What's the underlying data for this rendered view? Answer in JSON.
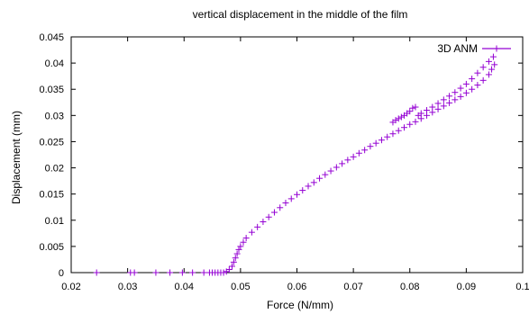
{
  "chart_data": {
    "type": "scatter",
    "title": "vertical displacement in the middle of the film",
    "xlabel": "Force (N/mm)",
    "ylabel": "Displacement (mm)",
    "xlim": [
      0.02,
      0.1
    ],
    "ylim": [
      0,
      0.045
    ],
    "x_ticks": [
      0.02,
      0.03,
      0.04,
      0.05,
      0.06,
      0.07,
      0.08,
      0.09,
      0.1
    ],
    "x_tick_labels": [
      "0.02",
      "0.03",
      "0.04",
      "0.05",
      "0.06",
      "0.07",
      "0.08",
      "0.09",
      "0.1"
    ],
    "y_ticks": [
      0,
      0.005,
      0.01,
      0.015,
      0.02,
      0.025,
      0.03,
      0.035,
      0.04,
      0.045
    ],
    "y_tick_labels": [
      "0",
      "0.005",
      "0.01",
      "0.015",
      "0.02",
      "0.025",
      "0.03",
      "0.035",
      "0.04",
      "0.045"
    ],
    "grid": false,
    "legend_position": "top-right",
    "series": [
      {
        "name": "3D ANM",
        "color": "#9400d3",
        "marker": "plus",
        "x": [
          0.0245,
          0.0305,
          0.0312,
          0.035,
          0.0375,
          0.0397,
          0.0415,
          0.0435,
          0.0445,
          0.045,
          0.0455,
          0.046,
          0.0465,
          0.047,
          0.0475,
          0.048,
          0.0485,
          0.0488,
          0.0491,
          0.0494,
          0.0497,
          0.05,
          0.0505,
          0.051,
          0.052,
          0.053,
          0.054,
          0.055,
          0.056,
          0.057,
          0.058,
          0.059,
          0.06,
          0.061,
          0.062,
          0.063,
          0.064,
          0.065,
          0.066,
          0.067,
          0.068,
          0.069,
          0.07,
          0.071,
          0.072,
          0.073,
          0.074,
          0.075,
          0.076,
          0.077,
          0.078,
          0.079,
          0.08,
          0.081,
          0.082,
          0.083,
          0.084,
          0.085,
          0.086,
          0.087,
          0.088,
          0.089,
          0.09,
          0.091,
          0.092,
          0.093,
          0.094,
          0.0945,
          0.095,
          0.0948,
          0.094,
          0.093,
          0.092,
          0.091,
          0.09,
          0.089,
          0.088,
          0.087,
          0.086,
          0.085,
          0.084,
          0.083,
          0.082,
          0.0815,
          0.081,
          0.0805,
          0.08,
          0.0795,
          0.079,
          0.0785,
          0.078,
          0.0775,
          0.077
        ],
        "y": [
          0,
          0,
          0,
          0,
          0,
          0,
          0,
          0,
          0,
          0,
          0,
          0,
          0,
          0,
          0.0002,
          0.0006,
          0.0012,
          0.002,
          0.0028,
          0.0036,
          0.0044,
          0.005,
          0.0058,
          0.0066,
          0.0077,
          0.0087,
          0.0097,
          0.0106,
          0.0115,
          0.0124,
          0.0133,
          0.0141,
          0.0149,
          0.0157,
          0.0165,
          0.0172,
          0.018,
          0.0187,
          0.0194,
          0.0201,
          0.0208,
          0.0215,
          0.0221,
          0.0228,
          0.0234,
          0.0241,
          0.0247,
          0.0253,
          0.0259,
          0.0265,
          0.0271,
          0.0277,
          0.0283,
          0.0288,
          0.0294,
          0.03,
          0.0306,
          0.0312,
          0.0318,
          0.0324,
          0.033,
          0.0336,
          0.0343,
          0.035,
          0.0358,
          0.0367,
          0.0378,
          0.0388,
          0.0397,
          0.0412,
          0.0403,
          0.0392,
          0.0381,
          0.037,
          0.036,
          0.0352,
          0.0344,
          0.0337,
          0.033,
          0.0323,
          0.0316,
          0.031,
          0.0304,
          0.03,
          0.0316,
          0.0314,
          0.0308,
          0.0304,
          0.03,
          0.0297,
          0.0294,
          0.0291,
          0.0287
        ]
      }
    ]
  }
}
